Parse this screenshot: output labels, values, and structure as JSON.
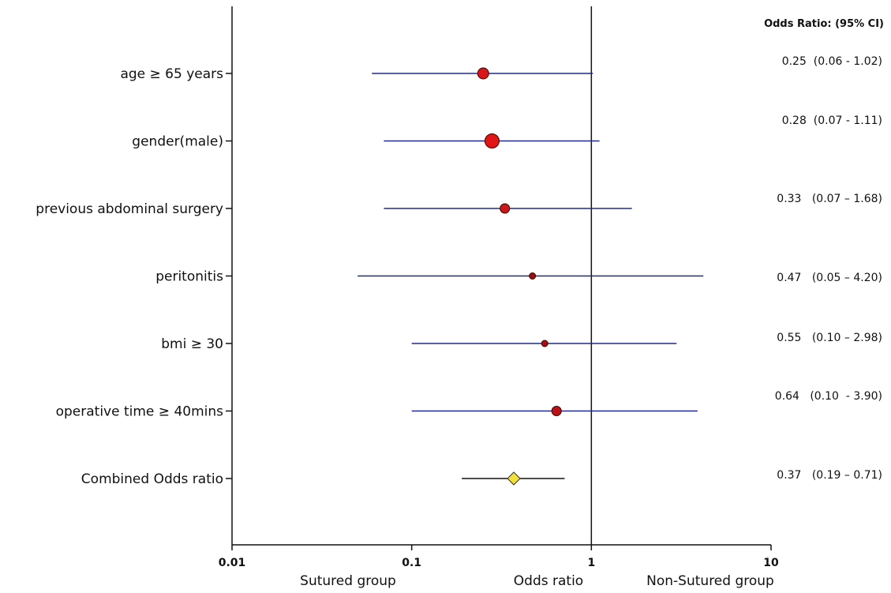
{
  "chart_data": {
    "type": "forest",
    "header": "Odds Ratio:  (95% CI)",
    "x_scale": "log",
    "xlim": [
      0.01,
      10
    ],
    "x_ticks": [
      "0.01",
      "0.1",
      "1",
      "10"
    ],
    "x_tick_values": [
      0.01,
      0.1,
      1,
      10
    ],
    "reference_line": 1,
    "xlabel": "Odds ratio",
    "left_label": "Sutured group",
    "right_label": "Non-Sutured group",
    "grid": false,
    "rows": [
      {
        "label": "age ≥ 65 years",
        "or": 0.25,
        "lower": 0.06,
        "upper": 1.02,
        "ci_text": "0.25  (0.06 - 1.02)",
        "marker": "circle",
        "marker_size": "medium",
        "color": "#d81818",
        "line_color": "#1f2a8c"
      },
      {
        "label": "gender(male)",
        "or": 0.28,
        "lower": 0.07,
        "upper": 1.11,
        "ci_text": "0.28  (0.07 - 1.11)",
        "marker": "circle",
        "marker_size": "large",
        "color": "#e01515",
        "line_color": "#1f2a8c"
      },
      {
        "label": "previous abdominal surgery",
        "or": 0.33,
        "lower": 0.07,
        "upper": 1.68,
        "ci_text": "0.33   (0.07 – 1.68)",
        "marker": "circle",
        "marker_size": "small",
        "color": "#c81818",
        "line_color": "#1f2a8c"
      },
      {
        "label": "peritonitis",
        "or": 0.47,
        "lower": 0.05,
        "upper": 4.2,
        "ci_text": "0.47   (0.05 – 4.20)",
        "marker": "circle",
        "marker_size": "tiny",
        "color": "#9a1010",
        "line_color": "#1f2a8c"
      },
      {
        "label": "bmi ≥ 30",
        "or": 0.55,
        "lower": 0.1,
        "upper": 2.98,
        "ci_text": "0.55   (0.10 – 2.98)",
        "marker": "circle",
        "marker_size": "tiny",
        "color": "#a81010",
        "line_color": "#1f2a8c"
      },
      {
        "label": "operative time ≥ 40mins",
        "or": 0.64,
        "lower": 0.1,
        "upper": 3.9,
        "ci_text": "0.64   (0.10  - 3.90)",
        "marker": "circle",
        "marker_size": "small",
        "color": "#b81414",
        "line_color": "#1f2a8c"
      },
      {
        "label": "Combined Odds ratio",
        "or": 0.37,
        "lower": 0.19,
        "upper": 0.71,
        "ci_text": "0.37   (0.19 – 0.71)",
        "marker": "diamond",
        "marker_size": "small",
        "color": "#f2e03a",
        "line_color": "#111111"
      }
    ]
  }
}
